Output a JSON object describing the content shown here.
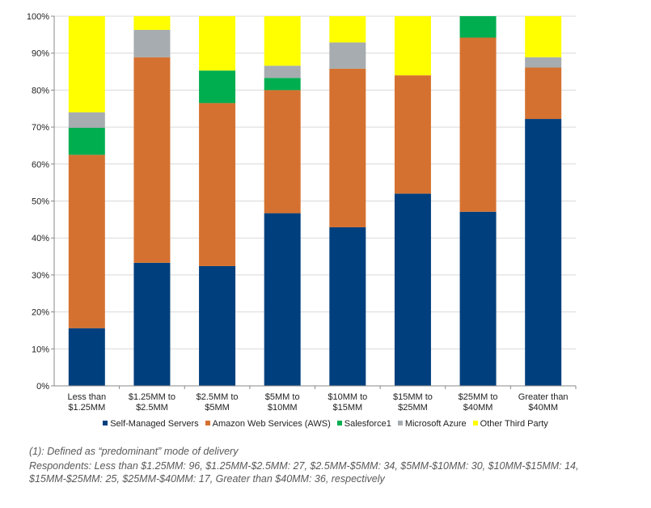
{
  "chart_data": {
    "type": "bar",
    "stacked": true,
    "title": "",
    "xlabel": "",
    "ylabel": "",
    "ylim": [
      0,
      100
    ],
    "y_ticks": [
      "0%",
      "10%",
      "20%",
      "30%",
      "40%",
      "50%",
      "60%",
      "70%",
      "80%",
      "90%",
      "100%"
    ],
    "grid": true,
    "legend_position": "bottom",
    "categories": [
      [
        "Less than",
        "$1.25MM"
      ],
      [
        "$1.25MM to",
        "$2.5MM"
      ],
      [
        "$2.5MM to",
        "$5MM"
      ],
      [
        "$5MM to",
        "$10MM"
      ],
      [
        "$10MM to",
        "$15MM"
      ],
      [
        "$15MM to",
        "$25MM"
      ],
      [
        "$25MM to",
        "$40MM"
      ],
      [
        "Greater than",
        "$40MM"
      ]
    ],
    "series": [
      {
        "name": "Self-Managed Servers",
        "color": "#003F7D",
        "values": [
          15.6,
          33.3,
          32.4,
          46.7,
          42.9,
          52.0,
          47.1,
          72.2
        ]
      },
      {
        "name": "Amazon Web Services (AWS)",
        "color": "#D57130",
        "values": [
          46.9,
          55.6,
          44.1,
          33.3,
          42.9,
          32.0,
          47.1,
          13.9
        ]
      },
      {
        "name": "Salesforce1",
        "color": "#00AE50",
        "values": [
          7.3,
          0,
          8.8,
          3.3,
          0,
          0,
          5.8,
          0
        ]
      },
      {
        "name": "Microsoft Azure",
        "color": "#A6ACAF",
        "values": [
          4.2,
          7.4,
          0,
          3.3,
          7.1,
          0,
          0,
          2.8
        ]
      },
      {
        "name": "Other Third Party",
        "color": "#FFFF00",
        "values": [
          26.0,
          3.7,
          14.7,
          13.4,
          7.1,
          16.0,
          0,
          11.1
        ]
      }
    ]
  },
  "footnotes": {
    "line1": "(1):  Defined as “predominant” mode of delivery",
    "line2": "Respondents: Less than $1.25MM: 96, $1.25MM-$2.5MM: 27, $2.5MM-$5MM: 34, $5MM-$10MM: 30, $10MM-$15MM: 14,",
    "line3": "$15MM-$25MM: 25, $25MM-$40MM: 17, Greater than $40MM: 36, respectively"
  }
}
